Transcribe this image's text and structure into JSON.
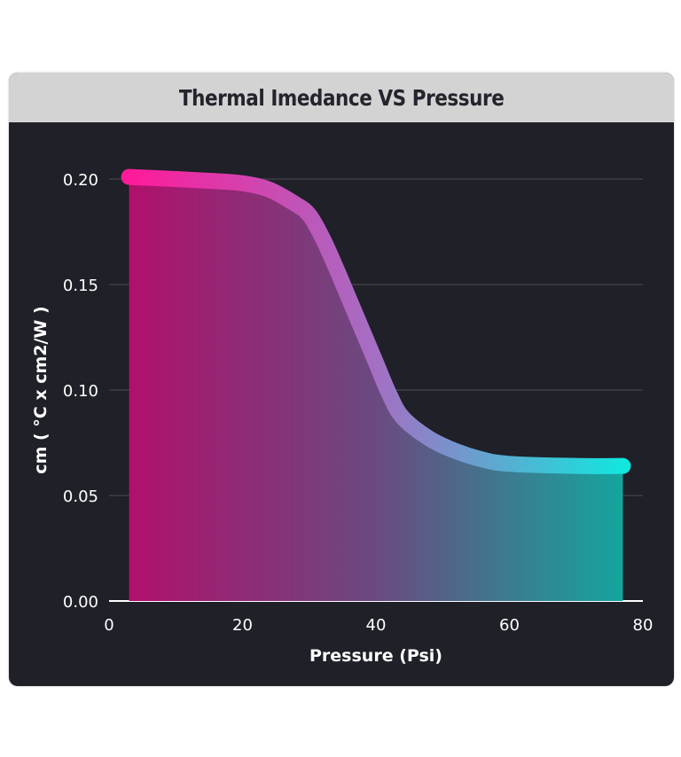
{
  "chart_data": {
    "type": "area",
    "title": "Thermal Imedance VS Pressure",
    "xlabel": "Pressure (Psi)",
    "ylabel": "cm ( °C x cm2/W )",
    "xlim": [
      0,
      80
    ],
    "ylim": [
      0,
      0.2
    ],
    "xticks": [
      "0",
      "20",
      "40",
      "60",
      "80"
    ],
    "yticks": [
      "0.00",
      "0.05",
      "0.10",
      "0.15",
      "0.20"
    ],
    "grid": true,
    "colors": {
      "start": "#ff1a9a",
      "end": "#12e6dd",
      "background": "#1f2028",
      "header": "#d3d3d3"
    },
    "series": [
      {
        "x": [
          3,
          10,
          16,
          20,
          24,
          28,
          30,
          32,
          34,
          36,
          38,
          40,
          42,
          44,
          48,
          52,
          56,
          60,
          70,
          77
        ],
        "y": [
          0.201,
          0.2,
          0.199,
          0.198,
          0.195,
          0.188,
          0.183,
          0.172,
          0.158,
          0.143,
          0.128,
          0.113,
          0.098,
          0.087,
          0.077,
          0.071,
          0.067,
          0.065,
          0.064,
          0.064
        ]
      }
    ]
  }
}
